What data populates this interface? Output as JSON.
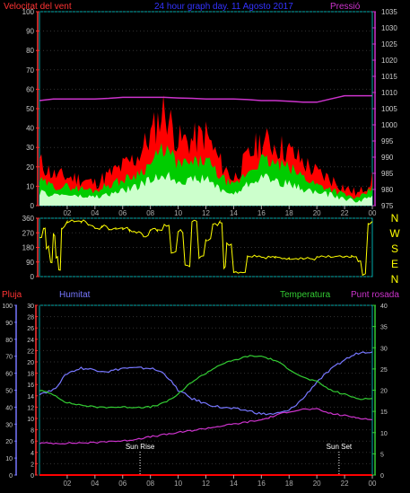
{
  "header": {
    "left_title": "Velocitat del vent",
    "center_title": "24 hour graph day.  11 Agosto 2017",
    "right_title": "Pressió"
  },
  "colors": {
    "gust": "#ff0000",
    "average": "#00cc00",
    "base": "#ccffcc",
    "pressure": "#cc33cc",
    "direction": "#ffff00",
    "temperature": "#33cc33",
    "humidity": "#7777ff",
    "dewpoint": "#cc33cc",
    "rain": "#ff0000",
    "axis_left": "#ff3333",
    "axis_pressure": "#cc33cc",
    "axis_humidity": "#7777ff",
    "axis_temp": "#33cc33",
    "axis_tick": "#cccccc",
    "grid": "#00aaaa",
    "ticks_x": "#aaaaaa"
  },
  "x_ticks": [
    "02",
    "04",
    "06",
    "08",
    "10",
    "12",
    "14",
    "16",
    "18",
    "20",
    "22",
    "00"
  ],
  "chart_data": [
    {
      "type": "area",
      "title": "24 hour graph day.  11 Agosto 2017",
      "ylabel": "Velocitat del vent",
      "y2label": "Pressió",
      "ylim": [
        0,
        100
      ],
      "y2lim": [
        975,
        1035
      ],
      "y_ticks": [
        "100",
        "90",
        "80",
        "70",
        "60",
        "50",
        "40",
        "30",
        "20",
        "10",
        "0"
      ],
      "y2_ticks": [
        "1035",
        "1030",
        "1025",
        "1020",
        "1015",
        "1010",
        "1005",
        "1000",
        "995",
        "990",
        "985",
        "980",
        "975"
      ],
      "x": [
        0,
        1,
        2,
        3,
        4,
        5,
        6,
        7,
        8,
        9,
        10,
        11,
        12,
        13,
        14,
        15,
        16,
        17,
        18,
        19,
        20,
        21,
        22,
        23,
        24
      ],
      "series": [
        {
          "name": "gust",
          "values": [
            20,
            14,
            13,
            12,
            10,
            14,
            18,
            22,
            32,
            45,
            30,
            30,
            33,
            20,
            12,
            22,
            30,
            28,
            25,
            20,
            15,
            12,
            8,
            5,
            12
          ]
        },
        {
          "name": "average",
          "values": [
            12,
            9,
            9,
            8,
            7,
            10,
            12,
            15,
            20,
            28,
            20,
            20,
            22,
            14,
            9,
            16,
            22,
            20,
            18,
            14,
            10,
            8,
            5,
            3,
            8
          ]
        },
        {
          "name": "base",
          "values": [
            6,
            5,
            5,
            4,
            4,
            5,
            7,
            9,
            12,
            15,
            12,
            12,
            13,
            8,
            5,
            10,
            14,
            12,
            10,
            8,
            6,
            5,
            3,
            2,
            4
          ]
        },
        {
          "name": "Pressió",
          "axis": "right",
          "values": [
            1007.5,
            1008,
            1008,
            1008,
            1008,
            1008.2,
            1008.5,
            1008.5,
            1008.5,
            1008.5,
            1008.3,
            1008.2,
            1008,
            1008,
            1008,
            1007.8,
            1007.5,
            1007.5,
            1007.3,
            1007,
            1007,
            1008,
            1009,
            1009,
            1009
          ]
        }
      ]
    },
    {
      "type": "line",
      "ylabel_right": [
        "N",
        "W",
        "S",
        "E",
        "N"
      ],
      "ylim": [
        0,
        360
      ],
      "y_ticks": [
        "360",
        "270",
        "180",
        "90",
        "0"
      ],
      "x": [
        0,
        0.3,
        0.5,
        0.8,
        1,
        1.2,
        1.4,
        1.6,
        2,
        2.5,
        3,
        3.5,
        4,
        4.5,
        5,
        5.5,
        6,
        6.5,
        7,
        7.5,
        8,
        8.5,
        9,
        9.5,
        10,
        10.5,
        11,
        11.5,
        12,
        12.5,
        13,
        13.3,
        13.5,
        14,
        15,
        16,
        17,
        18,
        19,
        20,
        21,
        22,
        22.5,
        23,
        23.3,
        23.7,
        24
      ],
      "series": [
        {
          "name": "direction",
          "values": [
            240,
            300,
            180,
            90,
            260,
            120,
            40,
            300,
            340,
            340,
            340,
            320,
            300,
            310,
            290,
            300,
            300,
            280,
            270,
            250,
            290,
            280,
            320,
            150,
            280,
            70,
            340,
            120,
            230,
            320,
            340,
            60,
            200,
            30,
            130,
            120,
            115,
            115,
            110,
            120,
            120,
            120,
            120,
            90,
            10,
            330,
            340
          ]
        }
      ]
    },
    {
      "type": "line",
      "y_left_rain_ticks": [
        "30",
        "28",
        "26",
        "24",
        "22",
        "20",
        "18",
        "16",
        "14",
        "12",
        "10",
        "8",
        "6",
        "4",
        "2",
        "0"
      ],
      "y_left_hum_ticks": [
        "100",
        "90",
        "80",
        "70",
        "60",
        "50",
        "40",
        "30",
        "20",
        "10",
        "0"
      ],
      "y_right_temp_ticks": [
        "40",
        "35",
        "30",
        "25",
        "20",
        "15",
        "10",
        "5",
        "0"
      ],
      "labels": {
        "rain": "Pluja",
        "humidity": "Humitat",
        "temperature": "Temperatura",
        "dewpoint": "Punt rosada"
      },
      "annotations": [
        {
          "label": "Sun Rise",
          "x": 7.25
        },
        {
          "label": "Sun Set",
          "x": 21.6
        }
      ],
      "x": [
        0,
        1,
        2,
        3,
        4,
        5,
        6,
        7,
        8,
        9,
        10,
        11,
        12,
        13,
        14,
        15,
        16,
        17,
        18,
        19,
        20,
        21,
        22,
        23,
        24
      ],
      "series": [
        {
          "name": "Humitat",
          "axis": "humidity",
          "ylim": [
            0,
            100
          ],
          "values": [
            48,
            50,
            60,
            63,
            62,
            61,
            63,
            63,
            63,
            60,
            50,
            45,
            42,
            40,
            39,
            38,
            36,
            36,
            38,
            45,
            55,
            62,
            68,
            72,
            73
          ]
        },
        {
          "name": "Temperatura",
          "axis": "temp",
          "ylim": [
            0,
            40
          ],
          "values": [
            20,
            19,
            17,
            16.5,
            16,
            16,
            16,
            16,
            16,
            17,
            19,
            22,
            24,
            26,
            27,
            28,
            28,
            27,
            25,
            23,
            22,
            20,
            19,
            18,
            18
          ]
        },
        {
          "name": "Punt rosada",
          "axis": "temp",
          "ylim": [
            0,
            40
          ],
          "values": [
            7.5,
            7.5,
            7.5,
            7.6,
            7.6,
            8,
            8,
            8.5,
            9,
            9.5,
            10,
            10.5,
            11,
            11.5,
            12,
            12.5,
            13,
            14,
            15,
            15.5,
            15.5,
            14.5,
            14,
            13.5,
            13
          ]
        },
        {
          "name": "Pluja",
          "axis": "rain",
          "ylim": [
            0,
            30
          ],
          "values": [
            0,
            0,
            0,
            0,
            0,
            0,
            0,
            0,
            0,
            0,
            0,
            0,
            0,
            0,
            0,
            0,
            0,
            0,
            0,
            0,
            0,
            0,
            0,
            0,
            0
          ]
        }
      ]
    }
  ]
}
